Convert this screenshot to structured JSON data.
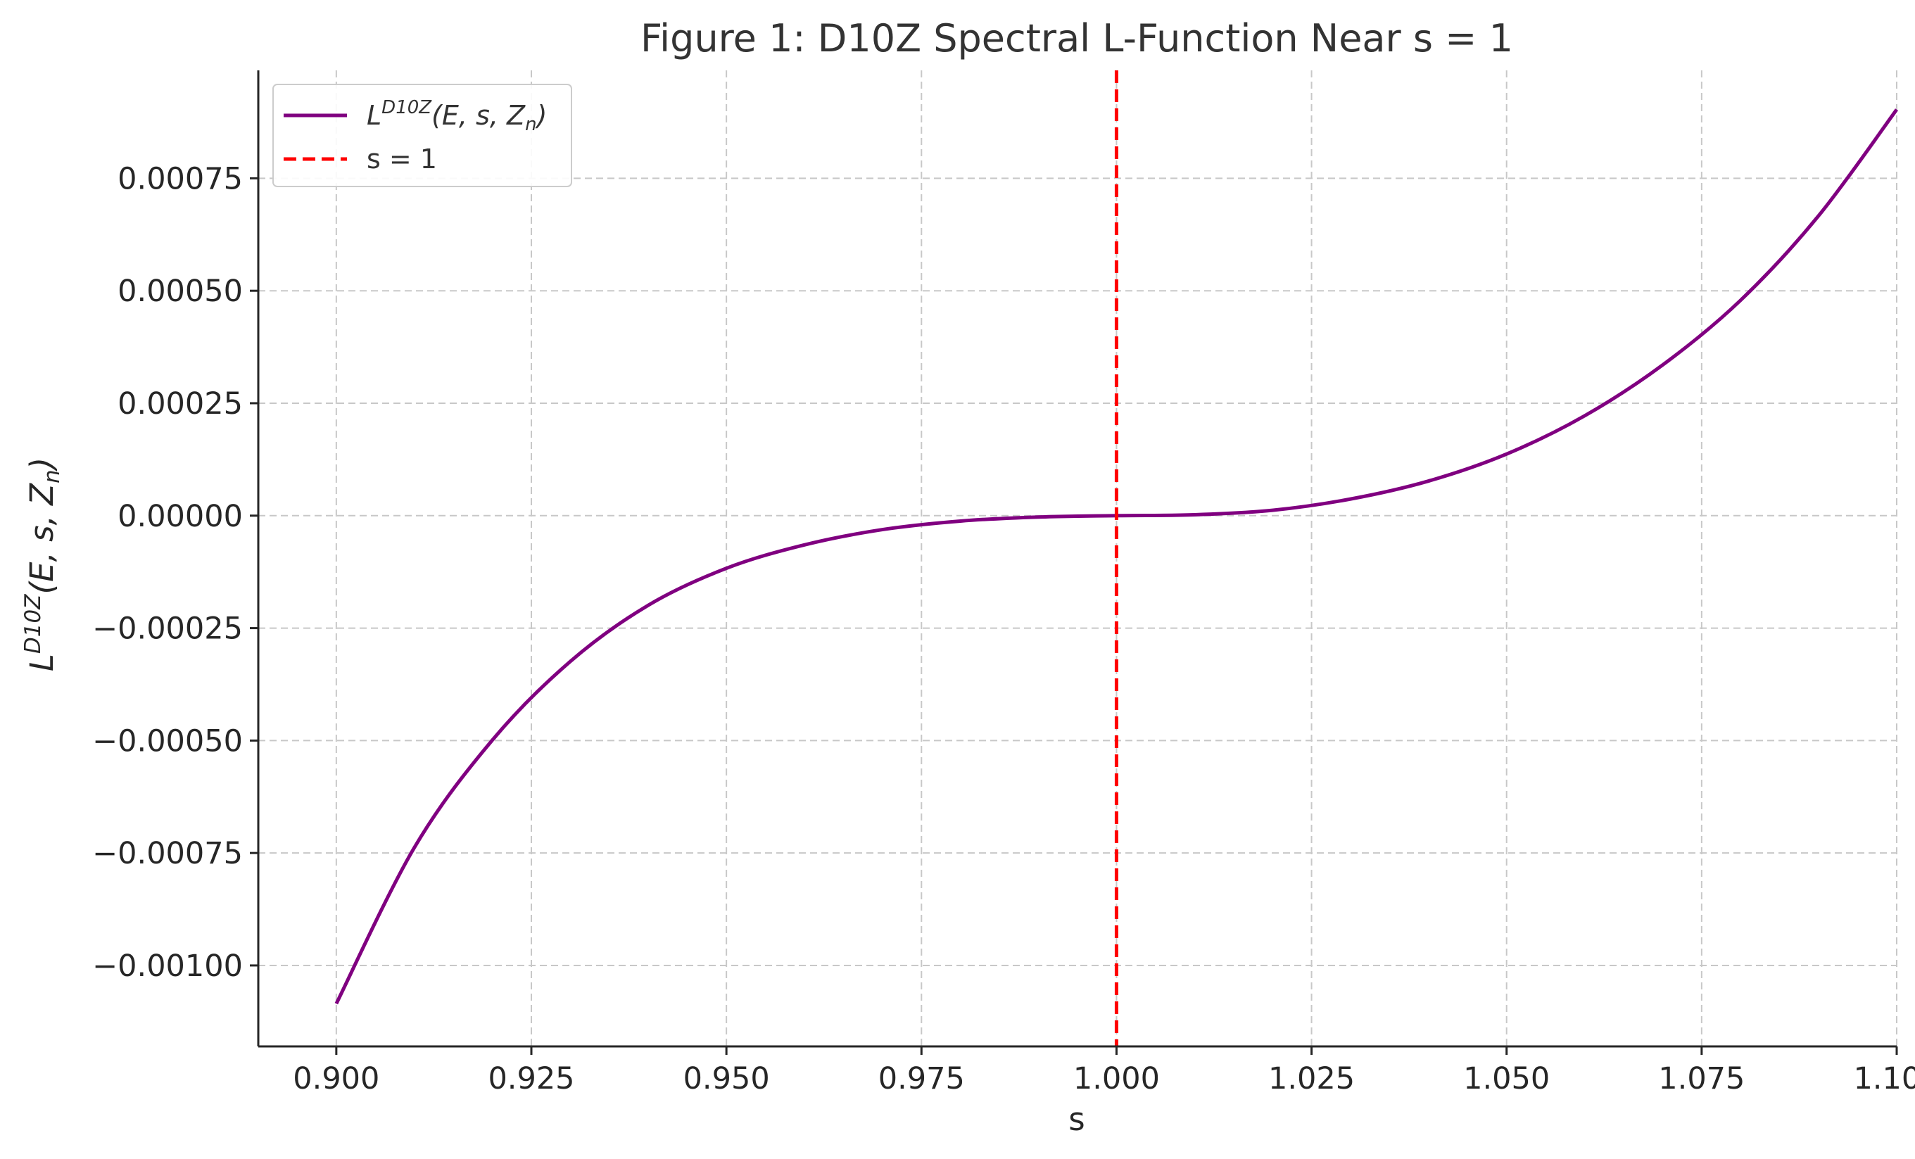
{
  "chart_data": {
    "type": "line",
    "title": "Figure 1: D10Z Spectral L-Function Near s = 1",
    "xlabel": "s",
    "ylabel": {
      "base": "L",
      "sup": "D10Z",
      "args_pre": "(E, s, Z",
      "args_sub": "n",
      "args_post": ")"
    },
    "xlim": [
      0.89,
      1.1
    ],
    "ylim": [
      -0.00118,
      0.00099
    ],
    "x_ticks": [
      0.9,
      0.925,
      0.95,
      0.975,
      1.0,
      1.025,
      1.05,
      1.075,
      1.1
    ],
    "x_tick_labels": [
      "0.900",
      "0.925",
      "0.950",
      "0.975",
      "1.000",
      "1.025",
      "1.050",
      "1.075",
      "1.100"
    ],
    "y_ticks": [
      -0.001,
      -0.00075,
      -0.0005,
      -0.00025,
      0.0,
      0.00025,
      0.0005,
      0.00075
    ],
    "y_tick_labels": [
      "−0.00100",
      "−0.00075",
      "−0.00050",
      "−0.00025",
      "0.00000",
      "0.00025",
      "0.00050",
      "0.00075"
    ],
    "grid": true,
    "legend_position": "top-left",
    "series": [
      {
        "name": {
          "base": "L",
          "sup": "D10Z",
          "args_pre": "(E, s, Z",
          "args_sub": "n",
          "args_post": ")"
        },
        "color": "#800080",
        "style": "solid",
        "x": [
          0.9,
          0.91,
          0.92,
          0.93,
          0.94,
          0.95,
          0.96,
          0.97,
          0.98,
          0.99,
          1.0,
          1.01,
          1.02,
          1.03,
          1.04,
          1.05,
          1.06,
          1.07,
          1.08,
          1.09,
          1.1
        ],
        "y": [
          -0.001085,
          -0.000738,
          -0.000499,
          -0.000324,
          -0.000199,
          -0.000117,
          -6.5e-05,
          -3.1e-05,
          -1.2e-05,
          -3e-06,
          0.0,
          2e-06,
          1.2e-05,
          3.7e-05,
          7.7e-05,
          0.000137,
          0.000222,
          0.000335,
          0.000479,
          0.000667,
          0.000903
        ]
      },
      {
        "name": "s = 1",
        "color": "#ff0000",
        "style": "dashed",
        "type": "vline",
        "x_value": 1.0
      }
    ]
  }
}
